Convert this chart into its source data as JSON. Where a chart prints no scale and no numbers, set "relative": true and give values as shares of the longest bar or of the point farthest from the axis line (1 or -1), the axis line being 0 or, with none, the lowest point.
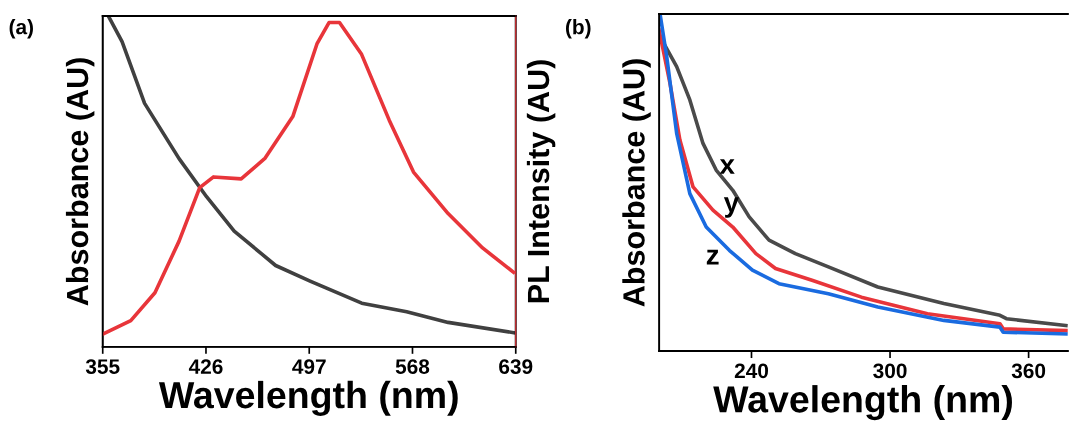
{
  "chart_data": [
    {
      "type": "line",
      "title": "(a)",
      "xlabel": "Wavelength (nm)",
      "ylabel": "Absorbance (AU)",
      "y2label": "PL Intensity (AU)",
      "relative": true,
      "tick_labels": "x",
      "xlim": [
        355,
        639
      ],
      "xticks": [
        355,
        426,
        497,
        568,
        639
      ],
      "grid": false,
      "legend": false,
      "series": [
        {
          "color": "#404040",
          "x": [
            358.9,
            368.3,
            383.8,
            407.5,
            426.4,
            445.4,
            473.9,
            497.6,
            533.1,
            564,
            592.5,
            637.5
          ],
          "values": [
            1.0,
            0.923,
            0.736,
            0.569,
            0.454,
            0.35,
            0.246,
            0.199,
            0.132,
            0.106,
            0.074,
            0.043
          ]
        },
        {
          "color": "#e8353a",
          "axis": "y2",
          "x": [
            355,
            374.3,
            390.9,
            407.5,
            421.7,
            431.2,
            450.2,
            466.7,
            485.7,
            502.3,
            510.6,
            517.8,
            533,
            552,
            568.7,
            592.5,
            616.2,
            637.5
          ],
          "values": [
            0.039,
            0.081,
            0.167,
            0.326,
            0.491,
            0.524,
            0.518,
            0.582,
            0.71,
            0.934,
            1.0,
            1.0,
            0.902,
            0.699,
            0.539,
            0.411,
            0.305,
            0.23
          ]
        }
      ]
    },
    {
      "type": "line",
      "title": "(b)",
      "xlabel": "Wavelength (nm)",
      "ylabel": "Absorbance (AU)",
      "relative": true,
      "tick_labels": "x",
      "xlim": [
        200,
        377
      ],
      "xticks": [
        240,
        300,
        360
      ],
      "grid": false,
      "legend": false,
      "series": [
        {
          "name": "x",
          "color": "#4a4a4a",
          "x": [
            200.4,
            207.6,
            213.3,
            219,
            224.7,
            231.9,
            239,
            247.6,
            259,
            273.3,
            294.7,
            323.3,
            347.6,
            350.4,
            376.2
          ],
          "values": [
            0.933,
            0.844,
            0.745,
            0.616,
            0.537,
            0.477,
            0.398,
            0.329,
            0.289,
            0.25,
            0.19,
            0.141,
            0.106,
            0.096,
            0.076
          ]
        },
        {
          "name": "y",
          "color": "#e8353a",
          "x": [
            200,
            204.7,
            209,
            214.7,
            223.3,
            231.9,
            241.9,
            250.4,
            266.2,
            287.6,
            316.2,
            347.6,
            349,
            376.2
          ],
          "values": [
            0.952,
            0.794,
            0.626,
            0.487,
            0.418,
            0.368,
            0.289,
            0.245,
            0.21,
            0.16,
            0.111,
            0.081,
            0.066,
            0.061
          ]
        },
        {
          "name": "z",
          "color": "#1a6be0",
          "x": [
            200.4,
            203.3,
            207.6,
            213.3,
            220.4,
            230.4,
            240.4,
            251.9,
            273.3,
            294.7,
            323.3,
            347.6,
            349,
            376.2
          ],
          "values": [
            1.0,
            0.873,
            0.646,
            0.467,
            0.368,
            0.299,
            0.24,
            0.2,
            0.17,
            0.131,
            0.091,
            0.071,
            0.056,
            0.051
          ]
        }
      ]
    }
  ]
}
